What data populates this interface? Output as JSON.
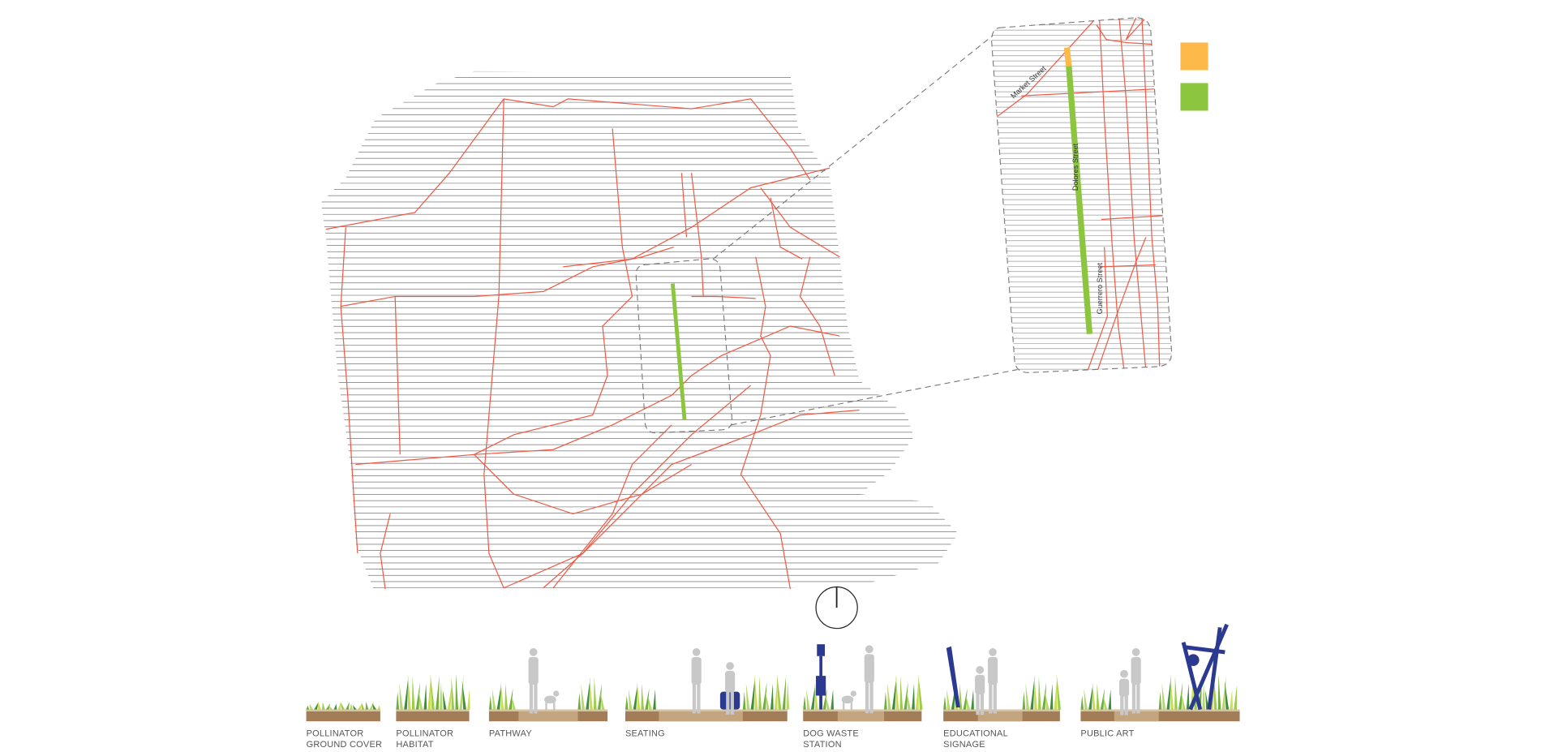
{
  "inset": {
    "streets": {
      "market": "Market Street",
      "dolores": "Dolores Street",
      "guerrero": "Guerrero Street"
    }
  },
  "legend": {
    "colors": {
      "orange": "#fdb94a",
      "green": "#8cc63f"
    }
  },
  "colors": {
    "roads": "#ee5a45",
    "route": "#8cc63f",
    "route_start": "#fdb94a",
    "furniture": "#2b3990"
  },
  "compass": {
    "icon": "north-arrow-icon"
  },
  "amenities": [
    {
      "line1": "POLLINATOR",
      "line2": "GROUND COVER"
    },
    {
      "line1": "POLLINATOR",
      "line2": "HABITAT"
    },
    {
      "line1": "PATHWAY",
      "line2": ""
    },
    {
      "line1": "SEATING",
      "line2": ""
    },
    {
      "line1": "DOG WASTE",
      "line2": "STATION"
    },
    {
      "line1": "EDUCATIONAL",
      "line2": "SIGNAGE"
    },
    {
      "line1": "PUBLIC ART",
      "line2": ""
    }
  ]
}
